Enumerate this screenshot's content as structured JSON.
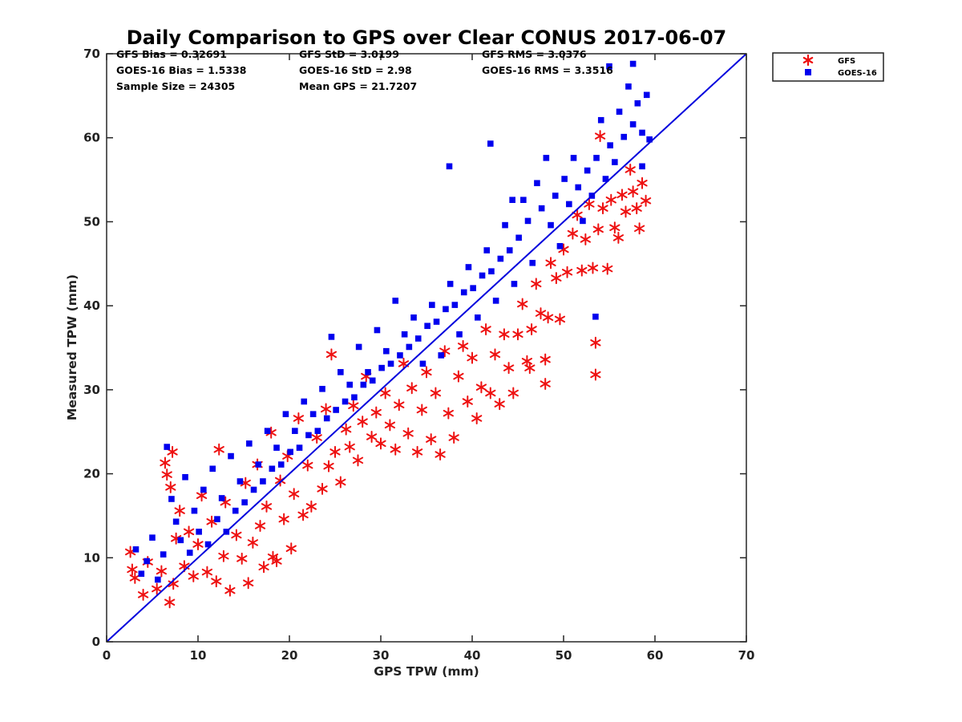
{
  "chart_data": {
    "type": "scatter",
    "title": "Daily Comparison to GPS over Clear CONUS 2017-06-07",
    "xlabel": "GPS TPW (mm)",
    "ylabel": "Measured TPW (mm)",
    "xlim": [
      0,
      70
    ],
    "ylim": [
      0,
      70
    ],
    "xticks": [
      "0",
      "10",
      "20",
      "30",
      "40",
      "50",
      "60",
      "70"
    ],
    "yticks": [
      "0",
      "10",
      "20",
      "30",
      "40",
      "50",
      "60",
      "70"
    ],
    "legend": {
      "location": "outside-top-right",
      "entries": [
        "GFS",
        "GOES-16"
      ]
    },
    "stats": [
      [
        "GFS Bias = 0.32691",
        "GFS StD = 3.0199",
        "GFS RMS = 3.0376"
      ],
      [
        "GOES-16 Bias = 1.5338",
        "GOES-16 StD = 2.98",
        "GOES-16 RMS = 3.3516"
      ],
      [
        "Sample Size = 24305",
        "Mean GPS = 21.7207"
      ]
    ],
    "reference_line": {
      "name": "one-to-one",
      "x": [
        0,
        70
      ],
      "y": [
        0,
        70
      ],
      "color": "#0000dd"
    },
    "series": [
      {
        "name": "GFS",
        "marker": "asterisk",
        "color": "#ee1111",
        "points": [
          [
            2.6,
            10.7
          ],
          [
            2.8,
            8.6
          ],
          [
            3.1,
            7.6
          ],
          [
            4.0,
            5.6
          ],
          [
            4.5,
            9.5
          ],
          [
            5.5,
            6.3
          ],
          [
            6.0,
            8.4
          ],
          [
            6.4,
            21.3
          ],
          [
            6.6,
            19.9
          ],
          [
            6.9,
            4.7
          ],
          [
            7.0,
            18.4
          ],
          [
            7.2,
            22.6
          ],
          [
            7.3,
            6.9
          ],
          [
            7.6,
            12.3
          ],
          [
            8.0,
            15.6
          ],
          [
            8.5,
            9.0
          ],
          [
            9.0,
            13.1
          ],
          [
            9.5,
            7.8
          ],
          [
            10.0,
            11.6
          ],
          [
            10.4,
            17.4
          ],
          [
            11.0,
            8.3
          ],
          [
            11.5,
            14.3
          ],
          [
            12.0,
            7.2
          ],
          [
            12.3,
            22.9
          ],
          [
            12.8,
            10.2
          ],
          [
            13.0,
            16.6
          ],
          [
            13.5,
            6.1
          ],
          [
            14.2,
            12.7
          ],
          [
            14.8,
            9.9
          ],
          [
            15.2,
            18.9
          ],
          [
            15.5,
            7.0
          ],
          [
            16.0,
            11.8
          ],
          [
            16.5,
            21.1
          ],
          [
            16.8,
            13.8
          ],
          [
            17.2,
            8.9
          ],
          [
            17.5,
            16.1
          ],
          [
            18.0,
            24.9
          ],
          [
            18.2,
            10.1
          ],
          [
            18.6,
            9.6
          ],
          [
            19.0,
            19.2
          ],
          [
            19.4,
            14.6
          ],
          [
            19.8,
            22.1
          ],
          [
            20.2,
            11.1
          ],
          [
            20.5,
            17.6
          ],
          [
            21.0,
            26.6
          ],
          [
            21.5,
            15.1
          ],
          [
            22.0,
            21.0
          ],
          [
            22.4,
            16.1
          ],
          [
            23.0,
            24.3
          ],
          [
            23.6,
            18.2
          ],
          [
            24.0,
            27.7
          ],
          [
            24.3,
            20.9
          ],
          [
            24.6,
            34.2
          ],
          [
            25.0,
            22.6
          ],
          [
            25.6,
            19.0
          ],
          [
            26.2,
            25.3
          ],
          [
            26.6,
            23.2
          ],
          [
            27.0,
            28.1
          ],
          [
            27.5,
            21.6
          ],
          [
            28.0,
            26.2
          ],
          [
            28.4,
            31.6
          ],
          [
            29.0,
            24.4
          ],
          [
            29.5,
            27.3
          ],
          [
            30.0,
            23.6
          ],
          [
            30.5,
            29.6
          ],
          [
            31.0,
            25.8
          ],
          [
            31.6,
            22.9
          ],
          [
            32.0,
            28.2
          ],
          [
            32.5,
            33.1
          ],
          [
            33.0,
            24.8
          ],
          [
            33.4,
            30.2
          ],
          [
            34.0,
            22.6
          ],
          [
            34.5,
            27.6
          ],
          [
            35.0,
            32.1
          ],
          [
            35.5,
            24.1
          ],
          [
            36.0,
            29.6
          ],
          [
            36.5,
            22.3
          ],
          [
            37.0,
            34.6
          ],
          [
            37.4,
            27.2
          ],
          [
            38.0,
            24.3
          ],
          [
            38.5,
            31.6
          ],
          [
            39.0,
            35.2
          ],
          [
            39.5,
            28.6
          ],
          [
            40.0,
            33.8
          ],
          [
            40.5,
            26.6
          ],
          [
            41.0,
            30.3
          ],
          [
            41.5,
            37.2
          ],
          [
            42.0,
            29.6
          ],
          [
            42.5,
            34.2
          ],
          [
            43.0,
            28.3
          ],
          [
            43.5,
            36.6
          ],
          [
            44.0,
            32.6
          ],
          [
            44.5,
            29.6
          ],
          [
            45.0,
            36.6
          ],
          [
            45.5,
            40.2
          ],
          [
            46.0,
            33.4
          ],
          [
            46.3,
            32.6
          ],
          [
            46.5,
            37.2
          ],
          [
            47.0,
            42.6
          ],
          [
            47.5,
            39.1
          ],
          [
            48.0,
            30.7
          ],
          [
            48.0,
            33.6
          ],
          [
            48.3,
            38.6
          ],
          [
            48.6,
            45.1
          ],
          [
            49.2,
            43.3
          ],
          [
            49.6,
            38.4
          ],
          [
            50.0,
            46.7
          ],
          [
            50.4,
            44.0
          ],
          [
            51.0,
            48.6
          ],
          [
            51.5,
            50.8
          ],
          [
            52.0,
            44.2
          ],
          [
            52.4,
            47.9
          ],
          [
            52.8,
            52.1
          ],
          [
            53.2,
            44.5
          ],
          [
            53.5,
            35.6
          ],
          [
            53.5,
            31.8
          ],
          [
            53.8,
            49.1
          ],
          [
            54.0,
            60.2
          ],
          [
            54.3,
            51.6
          ],
          [
            54.8,
            44.4
          ],
          [
            55.2,
            52.6
          ],
          [
            55.6,
            49.3
          ],
          [
            56.0,
            48.1
          ],
          [
            56.4,
            53.2
          ],
          [
            56.8,
            51.2
          ],
          [
            57.3,
            56.2
          ],
          [
            57.6,
            53.6
          ],
          [
            58.0,
            51.6
          ],
          [
            58.3,
            49.2
          ],
          [
            58.6,
            54.6
          ],
          [
            59.0,
            52.5
          ]
        ]
      },
      {
        "name": "GOES-16",
        "marker": "square",
        "color": "#0000ee",
        "points": [
          [
            3.2,
            11.0
          ],
          [
            3.8,
            8.1
          ],
          [
            4.4,
            9.6
          ],
          [
            5.0,
            12.4
          ],
          [
            5.6,
            7.4
          ],
          [
            6.2,
            10.4
          ],
          [
            6.6,
            23.2
          ],
          [
            7.1,
            17.0
          ],
          [
            7.6,
            14.3
          ],
          [
            8.1,
            12.1
          ],
          [
            8.6,
            19.6
          ],
          [
            9.1,
            10.6
          ],
          [
            9.6,
            15.6
          ],
          [
            10.1,
            13.1
          ],
          [
            10.6,
            18.1
          ],
          [
            11.1,
            11.6
          ],
          [
            11.6,
            20.6
          ],
          [
            12.1,
            14.6
          ],
          [
            12.6,
            17.1
          ],
          [
            13.1,
            13.1
          ],
          [
            13.6,
            22.1
          ],
          [
            14.1,
            15.6
          ],
          [
            14.6,
            19.1
          ],
          [
            15.1,
            16.6
          ],
          [
            15.6,
            23.6
          ],
          [
            16.1,
            18.1
          ],
          [
            16.6,
            21.1
          ],
          [
            17.1,
            19.1
          ],
          [
            17.6,
            25.1
          ],
          [
            18.1,
            20.6
          ],
          [
            18.6,
            23.1
          ],
          [
            19.1,
            21.1
          ],
          [
            19.6,
            27.1
          ],
          [
            20.1,
            22.6
          ],
          [
            20.6,
            25.1
          ],
          [
            21.1,
            23.1
          ],
          [
            21.6,
            28.6
          ],
          [
            22.1,
            24.6
          ],
          [
            22.6,
            27.1
          ],
          [
            23.1,
            25.1
          ],
          [
            23.6,
            30.1
          ],
          [
            24.1,
            26.6
          ],
          [
            24.6,
            36.3
          ],
          [
            25.1,
            27.6
          ],
          [
            25.6,
            32.1
          ],
          [
            26.1,
            28.6
          ],
          [
            26.6,
            30.6
          ],
          [
            27.1,
            29.1
          ],
          [
            27.6,
            35.1
          ],
          [
            28.1,
            30.6
          ],
          [
            28.6,
            32.1
          ],
          [
            29.1,
            31.1
          ],
          [
            29.6,
            37.1
          ],
          [
            30.1,
            32.6
          ],
          [
            30.6,
            34.6
          ],
          [
            31.1,
            33.1
          ],
          [
            31.6,
            40.6
          ],
          [
            32.1,
            34.1
          ],
          [
            32.6,
            36.6
          ],
          [
            33.1,
            35.1
          ],
          [
            33.6,
            38.6
          ],
          [
            34.1,
            36.1
          ],
          [
            34.6,
            33.1
          ],
          [
            35.1,
            37.6
          ],
          [
            35.6,
            40.1
          ],
          [
            36.1,
            38.1
          ],
          [
            36.6,
            34.1
          ],
          [
            37.1,
            39.6
          ],
          [
            37.6,
            42.6
          ],
          [
            38.1,
            40.1
          ],
          [
            38.6,
            36.6
          ],
          [
            39.1,
            41.6
          ],
          [
            39.6,
            44.6
          ],
          [
            40.1,
            42.1
          ],
          [
            40.6,
            38.6
          ],
          [
            41.1,
            43.6
          ],
          [
            41.6,
            46.6
          ],
          [
            42.1,
            44.1
          ],
          [
            42.6,
            40.6
          ],
          [
            43.1,
            45.6
          ],
          [
            43.6,
            49.6
          ],
          [
            44.1,
            46.6
          ],
          [
            44.6,
            42.6
          ],
          [
            45.1,
            48.1
          ],
          [
            45.6,
            52.6
          ],
          [
            46.1,
            50.1
          ],
          [
            46.6,
            45.1
          ],
          [
            47.1,
            54.6
          ],
          [
            47.6,
            51.6
          ],
          [
            48.1,
            57.6
          ],
          [
            48.6,
            49.6
          ],
          [
            49.1,
            53.1
          ],
          [
            49.6,
            47.1
          ],
          [
            50.1,
            55.1
          ],
          [
            50.6,
            52.1
          ],
          [
            51.1,
            57.6
          ],
          [
            51.6,
            54.1
          ],
          [
            52.1,
            50.1
          ],
          [
            52.6,
            56.1
          ],
          [
            53.1,
            53.1
          ],
          [
            53.5,
            38.7
          ],
          [
            53.6,
            57.6
          ],
          [
            54.1,
            62.1
          ],
          [
            54.6,
            55.1
          ],
          [
            55.1,
            59.1
          ],
          [
            55.6,
            57.1
          ],
          [
            56.1,
            63.1
          ],
          [
            56.6,
            60.1
          ],
          [
            57.1,
            66.1
          ],
          [
            57.6,
            61.6
          ],
          [
            57.6,
            68.8
          ],
          [
            58.1,
            64.1
          ],
          [
            58.6,
            60.6
          ],
          [
            58.6,
            56.6
          ],
          [
            59.1,
            65.1
          ],
          [
            59.4,
            59.8
          ],
          [
            55.0,
            68.5
          ],
          [
            42.0,
            59.3
          ],
          [
            37.5,
            56.6
          ],
          [
            44.4,
            52.6
          ]
        ]
      }
    ]
  }
}
